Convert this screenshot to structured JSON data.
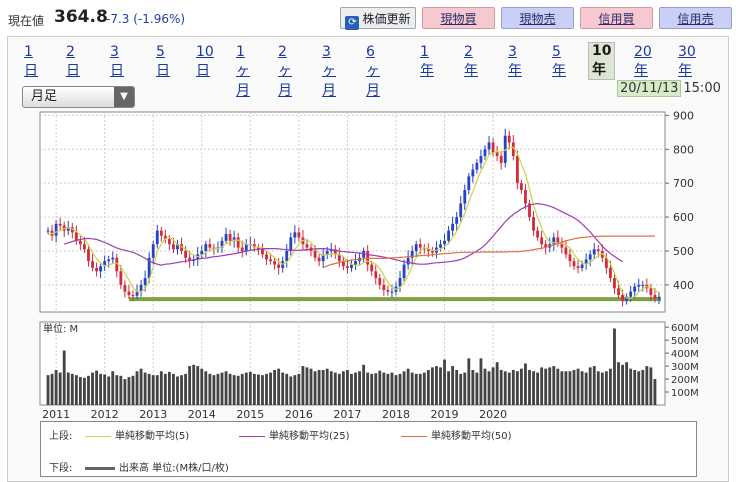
{
  "header": {
    "price_label": "現在値",
    "price_value": "364.8",
    "price_change": "-7.3 (-1.96%)",
    "buttons": {
      "update": "株価更新",
      "buy_cash": "現物買",
      "sell_cash": "現物売",
      "buy_margin": "信用買",
      "sell_margin": "信用売"
    },
    "colors": {
      "pink": "#f5c9cf",
      "blue": "#c9cff5"
    }
  },
  "periods": [
    "1日",
    "2日",
    "3日",
    "5日",
    "10日",
    "1ヶ月",
    "2ヶ月",
    "3ヶ月",
    "6ヶ月",
    "1年",
    "2年",
    "3年",
    "5年",
    "10年",
    "20年",
    "30年"
  ],
  "active_period": "10年",
  "chart_select": "月足",
  "timestamp": {
    "date": "20/11/13",
    "time": "15:00"
  },
  "chart_data": [
    {
      "type": "candlestick",
      "interval": "monthly",
      "title": "",
      "ylim": [
        320,
        910
      ],
      "yticks": [
        400,
        500,
        600,
        700,
        800,
        900
      ],
      "ytick_labels": [
        "400",
        "500",
        "600",
        "700",
        "800",
        "900"
      ],
      "xtick_labels": [
        "2011",
        "2012",
        "2013",
        "2014",
        "2015",
        "2016",
        "2017",
        "2018",
        "2019",
        "2020"
      ],
      "x_start": "2010-11",
      "colors": {
        "up": "#2642c6",
        "down": "#d42a3c",
        "ma5": "#c9d44a",
        "ma25": "#9b3db4",
        "ma50": "#e07046",
        "support": "#7ea142"
      },
      "support_line": 358,
      "close": [
        560,
        545,
        580,
        575,
        560,
        570,
        555,
        530,
        520,
        505,
        470,
        450,
        440,
        455,
        470,
        475,
        480,
        440,
        400,
        380,
        370,
        368,
        380,
        400,
        420,
        480,
        520,
        560,
        545,
        535,
        520,
        505,
        520,
        500,
        480,
        470,
        475,
        490,
        500,
        520,
        510,
        505,
        510,
        530,
        550,
        530,
        540,
        510,
        500,
        520,
        520,
        510,
        505,
        490,
        475,
        470,
        460,
        450,
        470,
        500,
        540,
        555,
        540,
        520,
        510,
        500,
        480,
        470,
        490,
        500,
        505,
        490,
        470,
        455,
        450,
        460,
        470,
        480,
        500,
        460,
        440,
        420,
        400,
        385,
        380,
        380,
        395,
        420,
        460,
        480,
        500,
        520,
        510,
        505,
        500,
        495,
        510,
        520,
        530,
        560,
        580,
        600,
        640,
        680,
        720,
        740,
        760,
        780,
        800,
        820,
        790,
        780,
        760,
        840,
        820,
        780,
        700,
        680,
        640,
        600,
        560,
        540,
        520,
        510,
        520,
        540,
        525,
        510,
        490,
        470,
        455,
        450,
        460,
        475,
        490,
        505,
        500,
        480,
        450,
        420,
        390,
        370,
        352,
        365,
        380,
        395,
        400,
        400,
        390,
        370,
        360,
        364.8
      ],
      "ma5": [
        548,
        552,
        556,
        560,
        566,
        568,
        565,
        558,
        547,
        536,
        516,
        495,
        477,
        464,
        457,
        458,
        463,
        464,
        453,
        433,
        414,
        392,
        380,
        380,
        389,
        414,
        454,
        498,
        521,
        536,
        540,
        533,
        518,
        513,
        505,
        495,
        488,
        483,
        487,
        497,
        503,
        506,
        507,
        513,
        521,
        526,
        532,
        532,
        526,
        520,
        518,
        512,
        511,
        509,
        500,
        490,
        480,
        469,
        461,
        466,
        482,
        503,
        522,
        531,
        533,
        525,
        508,
        494,
        487,
        489,
        490,
        491,
        489,
        483,
        472,
        461,
        457,
        458,
        466,
        470,
        466,
        460,
        448,
        428,
        408,
        393,
        387,
        392,
        407,
        429,
        455,
        480,
        502,
        509,
        507,
        502,
        502,
        506,
        513,
        523,
        540,
        558,
        582,
        612,
        644,
        676,
        708,
        736,
        760,
        784,
        790,
        794,
        790,
        798,
        806,
        806,
        788,
        756,
        728,
        682,
        636,
        600,
        568,
        542,
        526,
        524,
        524,
        522,
        517,
        509,
        490,
        475,
        465,
        461,
        466,
        476,
        486,
        492,
        481,
        463,
        434,
        404,
        376,
        361,
        360,
        366,
        378,
        388,
        395,
        393,
        384,
        377
      ],
      "ma25": [
        520,
        524,
        528,
        531,
        534,
        536,
        537,
        536,
        534,
        530,
        525,
        520,
        514,
        509,
        505,
        502,
        499,
        496,
        491,
        485,
        478,
        471,
        465,
        461,
        458,
        461,
        462,
        464,
        466,
        468,
        470,
        472,
        474,
        476,
        478,
        479,
        481,
        483,
        484,
        486,
        488,
        490,
        492,
        494,
        497,
        499,
        502,
        504,
        505,
        506,
        507,
        507,
        507,
        506,
        505,
        504,
        503,
        502,
        502,
        503,
        504,
        505,
        506,
        507,
        507,
        506,
        504,
        502,
        500,
        498,
        497,
        496,
        495,
        494,
        492,
        490,
        488,
        486,
        484,
        482,
        480,
        477,
        474,
        471,
        468,
        466,
        464,
        462,
        461,
        461,
        462,
        464,
        465,
        466,
        467,
        468,
        470,
        472,
        475,
        480,
        486,
        493,
        500,
        508,
        518,
        530,
        544,
        558,
        572,
        586,
        598,
        608,
        616,
        624,
        630,
        636,
        638,
        640,
        638,
        636,
        632,
        628,
        622,
        616,
        610,
        604,
        598,
        590,
        580,
        568,
        556,
        542,
        528,
        514,
        502,
        492,
        484,
        476,
        468
      ],
      "ma50": [
        452,
        456,
        460,
        463,
        466,
        469,
        471,
        473,
        475,
        476,
        477,
        478,
        478,
        478,
        478,
        478,
        479,
        480,
        480,
        481,
        482,
        483,
        484,
        485,
        486,
        487,
        488,
        489,
        490,
        491,
        492,
        493,
        494,
        495,
        496,
        496,
        496,
        496,
        496,
        497,
        497,
        497,
        497,
        497,
        497,
        497,
        498,
        498,
        498,
        499,
        500,
        502,
        504,
        506,
        508,
        511,
        514,
        518,
        522,
        526,
        530,
        533,
        536,
        538,
        540,
        541,
        542,
        543,
        543,
        544,
        544,
        544,
        544,
        544,
        544,
        544,
        544,
        544,
        544,
        544,
        544,
        544,
        544
      ],
      "ma25_start": 4,
      "ma50_start": 68
    },
    {
      "type": "bar",
      "title": "",
      "unit_label": "単位: M",
      "ylim": [
        0,
        640
      ],
      "yticks": [
        100,
        200,
        300,
        400,
        500,
        600
      ],
      "ytick_labels": [
        "100M",
        "200M",
        "300M",
        "400M",
        "500M",
        "600M"
      ],
      "color": "#444444",
      "values": [
        230,
        240,
        270,
        250,
        420,
        250,
        240,
        230,
        215,
        210,
        225,
        250,
        265,
        240,
        235,
        220,
        260,
        230,
        225,
        200,
        215,
        225,
        260,
        280,
        250,
        240,
        230,
        230,
        260,
        240,
        255,
        240,
        220,
        230,
        240,
        300,
        310,
        300,
        280,
        260,
        240,
        230,
        240,
        250,
        260,
        240,
        230,
        225,
        240,
        250,
        255,
        240,
        235,
        230,
        240,
        250,
        270,
        280,
        250,
        240,
        220,
        230,
        240,
        300,
        290,
        280,
        260,
        270,
        270,
        280,
        260,
        250,
        240,
        260,
        270,
        240,
        250,
        260,
        310,
        250,
        240,
        245,
        265,
        250,
        240,
        250,
        230,
        240,
        260,
        280,
        250,
        240,
        240,
        250,
        270,
        290,
        300,
        290,
        350,
        260,
        300,
        270,
        240,
        250,
        360,
        270,
        250,
        360,
        280,
        260,
        290,
        330,
        270,
        260,
        250,
        270,
        260,
        280,
        320,
        270,
        260,
        250,
        290,
        280,
        290,
        300,
        280,
        260,
        260,
        260,
        270,
        280,
        260,
        250,
        290,
        300,
        260,
        250,
        260,
        280,
        590,
        330,
        310,
        330,
        280,
        270,
        260,
        270,
        300,
        290,
        200
      ]
    }
  ],
  "legend": {
    "upper_label": "上段:",
    "lower_label": "下段:",
    "ma5": "単純移動平均(5)",
    "ma25": "単純移動平均(25)",
    "ma50": "単純移動平均(50)",
    "volume": "出来高 単位:(M株/口/枚)"
  }
}
